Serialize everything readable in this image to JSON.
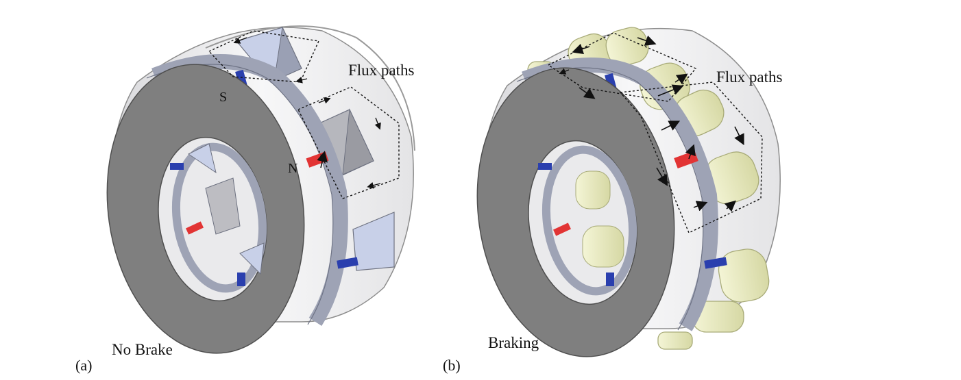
{
  "figure": {
    "panel_a": {
      "tag": "(a)",
      "caption": "No Brake",
      "flux_label": "Flux paths",
      "pole_south": "S",
      "pole_north": "N"
    },
    "panel_b": {
      "tag": "(b)",
      "caption": "Braking",
      "flux_label": "Flux paths"
    }
  },
  "colors": {
    "face": "#7f7f7f",
    "face_dark": "#5c5c5c",
    "rim": "#bdbdbd",
    "body": "#f1f1f3",
    "stator_ring": "#9ea3b5",
    "magnet_red": "#e23434",
    "magnet_blue": "#2a3fae",
    "plunger_blue": "#c8d0e8",
    "roller": "#e9ebc2",
    "roller_edge": "#a8ab78",
    "arrow": "#111111"
  }
}
